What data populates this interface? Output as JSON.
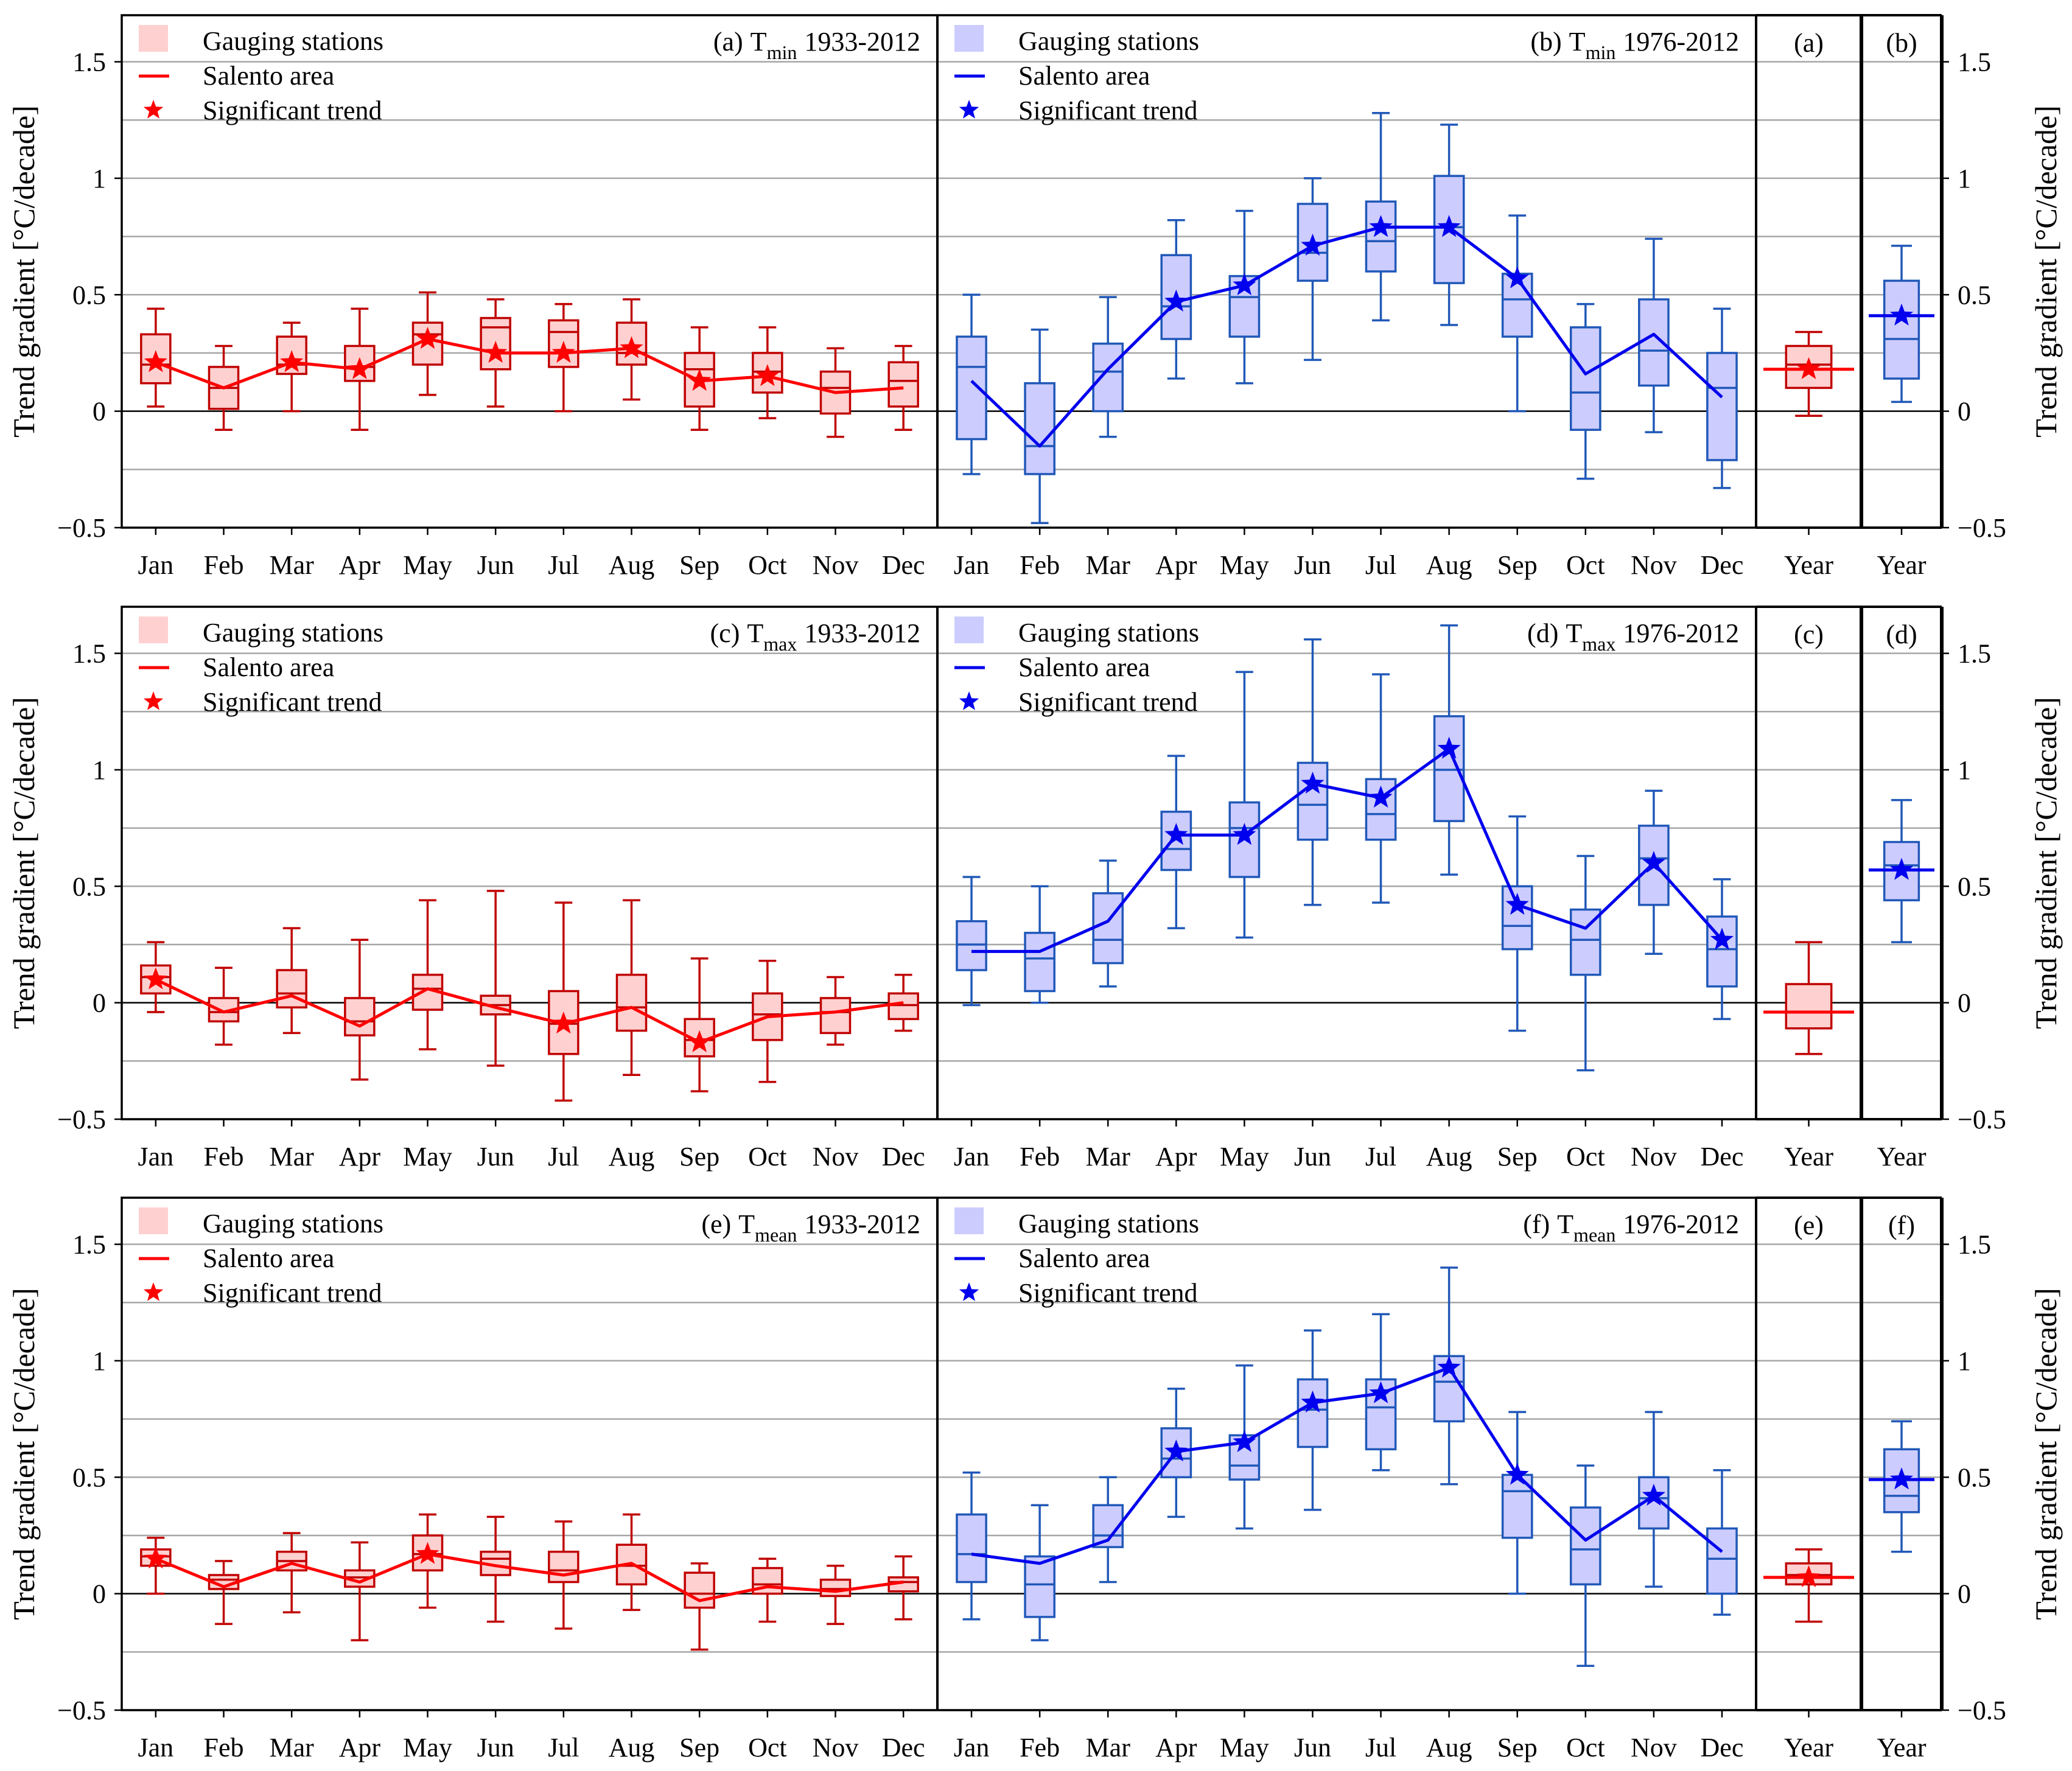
{
  "chart_data": {
    "type": "boxplot",
    "y_axis": {
      "label": "Trend gradient [°C/decade]",
      "ylim": [
        -0.5,
        1.7
      ],
      "ticks": [
        -0.5,
        0,
        0.5,
        1,
        1.5
      ],
      "tick_labels": [
        "−0.5",
        "0",
        "0.5",
        "1",
        "1.5"
      ],
      "minor_gridlines": [
        -0.25,
        0.25,
        0.75,
        1.25
      ]
    },
    "months": [
      "Jan",
      "Feb",
      "Mar",
      "Apr",
      "May",
      "Jun",
      "Jul",
      "Aug",
      "Sep",
      "Oct",
      "Nov",
      "Dec"
    ],
    "year_label": "Year",
    "legend": {
      "gauging": "Gauging stations",
      "salento": "Salento area",
      "significant": "Significant trend",
      "star": "★",
      "placement": "top-left"
    },
    "colors": {
      "red_stroke": "#c00000",
      "red_fill": "#ffd0d0",
      "red_line": "#ff0000",
      "blue_stroke": "#2058b8",
      "blue_fill": "#ccccff",
      "blue_line": "#0000ee",
      "grid": "#a6a6a6"
    },
    "rows": [
      {
        "var_main": "T",
        "var_sub": "min",
        "red": {
          "panel_label": "(a)",
          "period": "1933-2012",
          "boxes": [
            [
              0.02,
              0.12,
              0.2,
              0.33,
              0.44
            ],
            [
              -0.08,
              0.01,
              0.1,
              0.19,
              0.28
            ],
            [
              0.0,
              0.16,
              0.2,
              0.32,
              0.38
            ],
            [
              -0.08,
              0.13,
              0.19,
              0.28,
              0.44
            ],
            [
              0.07,
              0.2,
              0.33,
              0.38,
              0.51
            ],
            [
              0.02,
              0.18,
              0.36,
              0.4,
              0.48
            ],
            [
              0.0,
              0.19,
              0.34,
              0.39,
              0.46
            ],
            [
              0.05,
              0.2,
              0.25,
              0.38,
              0.48
            ],
            [
              -0.08,
              0.02,
              0.18,
              0.25,
              0.36
            ],
            [
              -0.03,
              0.08,
              0.17,
              0.25,
              0.36
            ],
            [
              -0.11,
              -0.01,
              0.1,
              0.17,
              0.27
            ],
            [
              -0.08,
              0.02,
              0.13,
              0.21,
              0.28
            ]
          ],
          "line": [
            0.21,
            0.1,
            0.21,
            0.18,
            0.31,
            0.25,
            0.25,
            0.27,
            0.13,
            0.15,
            0.08,
            0.1
          ],
          "sig": [
            true,
            false,
            true,
            true,
            true,
            true,
            true,
            true,
            true,
            true,
            false,
            false
          ],
          "year": {
            "panel_label": "(a)",
            "box": [
              -0.02,
              0.1,
              0.2,
              0.28,
              0.34
            ],
            "line": 0.18,
            "sig": true
          }
        },
        "blue": {
          "panel_label": "(b)",
          "period": "1976-2012",
          "boxes": [
            [
              -0.27,
              -0.12,
              0.19,
              0.32,
              0.5
            ],
            [
              -0.48,
              -0.27,
              -0.15,
              0.12,
              0.35
            ],
            [
              -0.11,
              0.0,
              0.17,
              0.29,
              0.49
            ],
            [
              0.14,
              0.31,
              0.45,
              0.67,
              0.82
            ],
            [
              0.12,
              0.32,
              0.49,
              0.58,
              0.86
            ],
            [
              0.22,
              0.56,
              0.68,
              0.89,
              1.0
            ],
            [
              0.39,
              0.6,
              0.73,
              0.9,
              1.28
            ],
            [
              0.37,
              0.55,
              0.79,
              1.01,
              1.23
            ],
            [
              0.0,
              0.32,
              0.48,
              0.59,
              0.84
            ],
            [
              -0.29,
              -0.08,
              0.08,
              0.36,
              0.46
            ],
            [
              -0.09,
              0.11,
              0.26,
              0.48,
              0.74
            ],
            [
              -0.33,
              -0.21,
              0.1,
              0.25,
              0.44
            ]
          ],
          "line": [
            0.13,
            -0.15,
            0.18,
            0.47,
            0.54,
            0.71,
            0.79,
            0.79,
            0.57,
            0.16,
            0.33,
            0.06
          ],
          "sig": [
            false,
            false,
            false,
            true,
            true,
            true,
            true,
            true,
            true,
            false,
            false,
            false
          ],
          "year": {
            "panel_label": "(b)",
            "box": [
              0.04,
              0.14,
              0.31,
              0.56,
              0.71
            ],
            "line": 0.41,
            "sig": true
          }
        }
      },
      {
        "var_main": "T",
        "var_sub": "max",
        "red": {
          "panel_label": "(c)",
          "period": "1933-2012",
          "boxes": [
            [
              -0.04,
              0.04,
              0.11,
              0.16,
              0.26
            ],
            [
              -0.18,
              -0.08,
              -0.04,
              0.02,
              0.15
            ],
            [
              -0.13,
              -0.02,
              0.04,
              0.14,
              0.32
            ],
            [
              -0.33,
              -0.14,
              -0.08,
              0.02,
              0.27
            ],
            [
              -0.2,
              -0.03,
              0.06,
              0.12,
              0.44
            ],
            [
              -0.27,
              -0.05,
              -0.01,
              0.03,
              0.48
            ],
            [
              -0.42,
              -0.22,
              -0.09,
              0.05,
              0.43
            ],
            [
              -0.31,
              -0.12,
              -0.02,
              0.12,
              0.44
            ],
            [
              -0.38,
              -0.23,
              -0.16,
              -0.07,
              0.19
            ],
            [
              -0.34,
              -0.16,
              -0.05,
              0.04,
              0.18
            ],
            [
              -0.18,
              -0.13,
              -0.04,
              0.02,
              0.11
            ],
            [
              -0.12,
              -0.07,
              -0.01,
              0.04,
              0.12
            ]
          ],
          "line": [
            0.1,
            -0.04,
            0.03,
            -0.1,
            0.06,
            -0.02,
            -0.09,
            -0.02,
            -0.17,
            -0.06,
            -0.04,
            0.0
          ],
          "sig": [
            true,
            false,
            false,
            false,
            false,
            false,
            true,
            false,
            true,
            false,
            false,
            false
          ],
          "year": {
            "panel_label": "(c)",
            "box": [
              -0.22,
              -0.11,
              -0.04,
              0.08,
              0.26
            ],
            "line": -0.04,
            "sig": false
          }
        },
        "blue": {
          "panel_label": "(d)",
          "period": "1976-2012",
          "boxes": [
            [
              -0.01,
              0.14,
              0.25,
              0.35,
              0.54
            ],
            [
              0.0,
              0.05,
              0.19,
              0.3,
              0.5
            ],
            [
              0.07,
              0.17,
              0.27,
              0.47,
              0.61
            ],
            [
              0.32,
              0.57,
              0.66,
              0.82,
              1.06
            ],
            [
              0.28,
              0.54,
              0.75,
              0.86,
              1.42
            ],
            [
              0.42,
              0.7,
              0.85,
              1.03,
              1.56
            ],
            [
              0.43,
              0.7,
              0.81,
              0.96,
              1.41
            ],
            [
              0.55,
              0.78,
              1.0,
              1.23,
              1.62
            ],
            [
              -0.12,
              0.23,
              0.33,
              0.5,
              0.8
            ],
            [
              -0.29,
              0.12,
              0.27,
              0.4,
              0.63
            ],
            [
              0.21,
              0.42,
              0.62,
              0.76,
              0.91
            ],
            [
              -0.07,
              0.07,
              0.23,
              0.37,
              0.53
            ]
          ],
          "line": [
            0.22,
            0.22,
            0.35,
            0.72,
            0.72,
            0.94,
            0.88,
            1.09,
            0.42,
            0.32,
            0.6,
            0.27
          ],
          "sig": [
            false,
            false,
            false,
            true,
            true,
            true,
            true,
            true,
            true,
            false,
            true,
            true
          ],
          "year": {
            "panel_label": "(d)",
            "box": [
              0.26,
              0.44,
              0.59,
              0.69,
              0.87
            ],
            "line": 0.57,
            "sig": true
          }
        }
      },
      {
        "var_main": "T",
        "var_sub": "mean",
        "red": {
          "panel_label": "(e)",
          "period": "1933-2012",
          "boxes": [
            [
              0.0,
              0.12,
              0.16,
              0.19,
              0.24
            ],
            [
              -0.13,
              0.02,
              0.06,
              0.08,
              0.14
            ],
            [
              -0.08,
              0.1,
              0.14,
              0.18,
              0.26
            ],
            [
              -0.2,
              0.03,
              0.07,
              0.1,
              0.22
            ],
            [
              -0.06,
              0.1,
              0.17,
              0.25,
              0.34
            ],
            [
              -0.12,
              0.08,
              0.15,
              0.18,
              0.33
            ],
            [
              -0.15,
              0.05,
              0.1,
              0.18,
              0.31
            ],
            [
              -0.07,
              0.04,
              0.12,
              0.21,
              0.34
            ],
            [
              -0.24,
              -0.06,
              0.0,
              0.09,
              0.13
            ],
            [
              -0.12,
              0.0,
              0.04,
              0.11,
              0.15
            ],
            [
              -0.13,
              -0.01,
              0.02,
              0.06,
              0.12
            ],
            [
              -0.11,
              0.01,
              0.05,
              0.07,
              0.16
            ]
          ],
          "line": [
            0.15,
            0.03,
            0.13,
            0.05,
            0.17,
            0.12,
            0.08,
            0.13,
            -0.03,
            0.03,
            0.01,
            0.05
          ],
          "sig": [
            true,
            false,
            false,
            false,
            true,
            false,
            false,
            false,
            false,
            false,
            false,
            false
          ],
          "year": {
            "panel_label": "(e)",
            "box": [
              -0.12,
              0.04,
              0.08,
              0.13,
              0.19
            ],
            "line": 0.07,
            "sig": true
          }
        },
        "blue": {
          "panel_label": "(f)",
          "period": "1976-2012",
          "boxes": [
            [
              -0.11,
              0.05,
              0.17,
              0.34,
              0.52
            ],
            [
              -0.2,
              -0.1,
              0.04,
              0.16,
              0.38
            ],
            [
              0.05,
              0.2,
              0.25,
              0.38,
              0.5
            ],
            [
              0.33,
              0.5,
              0.58,
              0.71,
              0.88
            ],
            [
              0.28,
              0.49,
              0.55,
              0.68,
              0.98
            ],
            [
              0.36,
              0.63,
              0.79,
              0.92,
              1.13
            ],
            [
              0.53,
              0.62,
              0.8,
              0.92,
              1.2
            ],
            [
              0.47,
              0.74,
              0.91,
              1.02,
              1.4
            ],
            [
              0.0,
              0.24,
              0.44,
              0.51,
              0.78
            ],
            [
              -0.31,
              0.04,
              0.19,
              0.37,
              0.55
            ],
            [
              0.03,
              0.28,
              0.41,
              0.5,
              0.78
            ],
            [
              -0.09,
              0.0,
              0.15,
              0.28,
              0.53
            ]
          ],
          "line": [
            0.17,
            0.13,
            0.23,
            0.61,
            0.65,
            0.82,
            0.86,
            0.97,
            0.51,
            0.23,
            0.42,
            0.18
          ],
          "sig": [
            false,
            false,
            false,
            true,
            true,
            true,
            true,
            true,
            true,
            false,
            true,
            false
          ],
          "year": {
            "panel_label": "(f)",
            "box": [
              0.18,
              0.35,
              0.42,
              0.62,
              0.74
            ],
            "line": 0.49,
            "sig": true
          }
        }
      }
    ]
  }
}
